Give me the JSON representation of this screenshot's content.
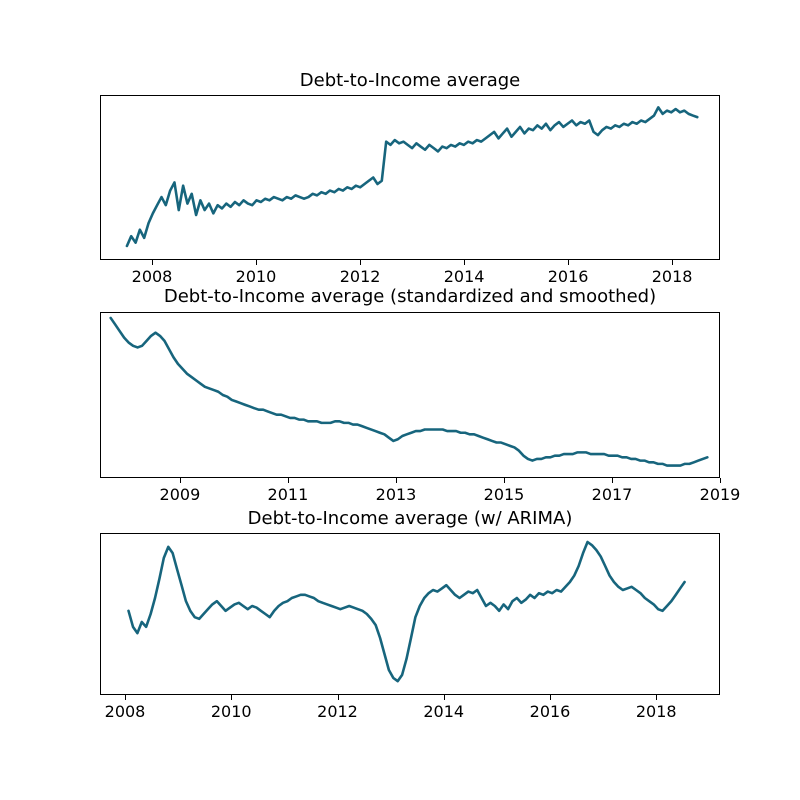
{
  "page": {
    "background": "#ffffff"
  },
  "style": {
    "line_color": "#17657d",
    "line_width": 2.6,
    "axis_color": "#000000",
    "tick_label_color": "#000000"
  },
  "chart_data": [
    {
      "type": "line",
      "title": "Debt-to-Income average",
      "xlabel": "",
      "ylabel": "",
      "xlim": [
        2007.0,
        2018.92
      ],
      "ylim": [
        0,
        1
      ],
      "xticks": [
        2008,
        2010,
        2012,
        2014,
        2016,
        2018
      ],
      "yticks": [],
      "grid": false,
      "legend": null,
      "x_start": 2007.5,
      "x_step": 0.0833333,
      "y": [
        0.08,
        0.14,
        0.1,
        0.18,
        0.13,
        0.22,
        0.28,
        0.33,
        0.38,
        0.33,
        0.42,
        0.47,
        0.3,
        0.45,
        0.34,
        0.4,
        0.27,
        0.36,
        0.3,
        0.34,
        0.28,
        0.33,
        0.31,
        0.34,
        0.32,
        0.35,
        0.33,
        0.36,
        0.34,
        0.33,
        0.36,
        0.35,
        0.37,
        0.36,
        0.38,
        0.37,
        0.36,
        0.38,
        0.37,
        0.39,
        0.38,
        0.37,
        0.38,
        0.4,
        0.39,
        0.41,
        0.4,
        0.42,
        0.41,
        0.43,
        0.42,
        0.44,
        0.43,
        0.45,
        0.44,
        0.46,
        0.48,
        0.5,
        0.46,
        0.48,
        0.72,
        0.7,
        0.73,
        0.71,
        0.72,
        0.7,
        0.68,
        0.71,
        0.69,
        0.67,
        0.7,
        0.68,
        0.66,
        0.69,
        0.68,
        0.7,
        0.69,
        0.71,
        0.7,
        0.72,
        0.71,
        0.73,
        0.72,
        0.74,
        0.76,
        0.78,
        0.74,
        0.77,
        0.8,
        0.75,
        0.78,
        0.81,
        0.77,
        0.8,
        0.79,
        0.82,
        0.8,
        0.83,
        0.79,
        0.82,
        0.84,
        0.81,
        0.83,
        0.85,
        0.82,
        0.84,
        0.83,
        0.85,
        0.78,
        0.76,
        0.79,
        0.81,
        0.8,
        0.82,
        0.81,
        0.83,
        0.82,
        0.84,
        0.83,
        0.85,
        0.84,
        0.86,
        0.88,
        0.93,
        0.89,
        0.91,
        0.9,
        0.92,
        0.9,
        0.91,
        0.89,
        0.88,
        0.87
      ]
    },
    {
      "type": "line",
      "title": "Debt-to-Income average (standardized and smoothed)",
      "xlabel": "",
      "ylabel": "",
      "xlim": [
        2007.52,
        2019.0
      ],
      "ylim": [
        0,
        1
      ],
      "xticks": [
        2009,
        2011,
        2013,
        2015,
        2017,
        2019
      ],
      "yticks": [],
      "grid": false,
      "legend": null,
      "x_start": 2007.7,
      "x_step": 0.0833333,
      "y": [
        0.97,
        0.93,
        0.89,
        0.85,
        0.82,
        0.8,
        0.79,
        0.8,
        0.83,
        0.86,
        0.88,
        0.86,
        0.83,
        0.78,
        0.73,
        0.69,
        0.66,
        0.63,
        0.61,
        0.59,
        0.57,
        0.55,
        0.54,
        0.53,
        0.52,
        0.5,
        0.49,
        0.47,
        0.46,
        0.45,
        0.44,
        0.43,
        0.42,
        0.41,
        0.41,
        0.4,
        0.39,
        0.38,
        0.38,
        0.37,
        0.36,
        0.36,
        0.35,
        0.35,
        0.34,
        0.34,
        0.34,
        0.33,
        0.33,
        0.33,
        0.34,
        0.34,
        0.33,
        0.33,
        0.32,
        0.32,
        0.31,
        0.3,
        0.29,
        0.28,
        0.27,
        0.26,
        0.24,
        0.22,
        0.23,
        0.25,
        0.26,
        0.27,
        0.28,
        0.28,
        0.29,
        0.29,
        0.29,
        0.29,
        0.29,
        0.28,
        0.28,
        0.28,
        0.27,
        0.27,
        0.26,
        0.26,
        0.25,
        0.24,
        0.23,
        0.22,
        0.21,
        0.21,
        0.2,
        0.19,
        0.18,
        0.16,
        0.13,
        0.11,
        0.1,
        0.11,
        0.11,
        0.12,
        0.12,
        0.13,
        0.13,
        0.14,
        0.14,
        0.14,
        0.15,
        0.15,
        0.15,
        0.14,
        0.14,
        0.14,
        0.14,
        0.13,
        0.13,
        0.13,
        0.12,
        0.12,
        0.11,
        0.11,
        0.1,
        0.1,
        0.09,
        0.09,
        0.08,
        0.08,
        0.07,
        0.07,
        0.07,
        0.07,
        0.08,
        0.08,
        0.09,
        0.1,
        0.11,
        0.12
      ]
    },
    {
      "type": "line",
      "title": "Debt-to-Income average (w/ ARIMA)",
      "xlabel": "",
      "ylabel": "",
      "xlim": [
        2007.53,
        2019.2
      ],
      "ylim": [
        0,
        1
      ],
      "xticks": [
        2008,
        2010,
        2012,
        2014,
        2016,
        2018
      ],
      "yticks": [],
      "grid": false,
      "legend": null,
      "x_start": 2008.05,
      "x_step": 0.0833333,
      "y": [
        0.52,
        0.42,
        0.38,
        0.45,
        0.42,
        0.5,
        0.6,
        0.72,
        0.85,
        0.92,
        0.88,
        0.78,
        0.68,
        0.58,
        0.52,
        0.48,
        0.47,
        0.5,
        0.53,
        0.56,
        0.58,
        0.55,
        0.52,
        0.54,
        0.56,
        0.57,
        0.55,
        0.53,
        0.55,
        0.54,
        0.52,
        0.5,
        0.48,
        0.52,
        0.55,
        0.57,
        0.58,
        0.6,
        0.61,
        0.62,
        0.62,
        0.61,
        0.6,
        0.58,
        0.57,
        0.56,
        0.55,
        0.54,
        0.53,
        0.54,
        0.55,
        0.54,
        0.53,
        0.52,
        0.5,
        0.47,
        0.43,
        0.35,
        0.25,
        0.15,
        0.1,
        0.08,
        0.12,
        0.22,
        0.35,
        0.48,
        0.55,
        0.6,
        0.63,
        0.65,
        0.64,
        0.66,
        0.68,
        0.65,
        0.62,
        0.6,
        0.62,
        0.64,
        0.63,
        0.65,
        0.6,
        0.55,
        0.57,
        0.55,
        0.52,
        0.56,
        0.53,
        0.58,
        0.6,
        0.57,
        0.59,
        0.62,
        0.6,
        0.63,
        0.62,
        0.64,
        0.63,
        0.65,
        0.64,
        0.67,
        0.7,
        0.74,
        0.8,
        0.88,
        0.95,
        0.93,
        0.9,
        0.86,
        0.8,
        0.74,
        0.7,
        0.67,
        0.65,
        0.66,
        0.67,
        0.65,
        0.63,
        0.6,
        0.58,
        0.56,
        0.53,
        0.52,
        0.55,
        0.58,
        0.62,
        0.66,
        0.7
      ]
    }
  ]
}
